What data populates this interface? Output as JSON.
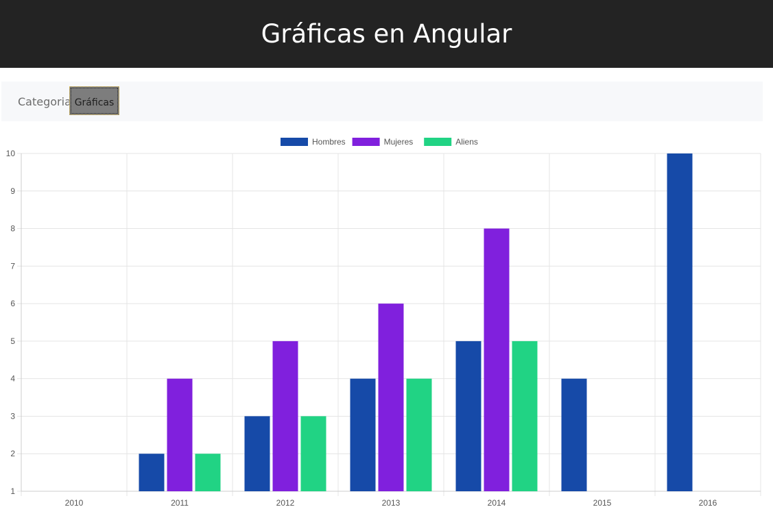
{
  "header": {
    "title": "Gráficas en Angular"
  },
  "navbar": {
    "brand": "Categoria",
    "items": [
      {
        "label": "Gráficas",
        "active": true
      }
    ]
  },
  "colors": {
    "header_bg": "#232323",
    "navbar_bg": "#f7f8fa",
    "active_item_bg": "#7d7d7d"
  },
  "chart_data": {
    "type": "bar",
    "categories": [
      "2010",
      "2011",
      "2012",
      "2013",
      "2014",
      "2015",
      "2016"
    ],
    "series": [
      {
        "name": "Hombres",
        "color": "#164aa8",
        "values": [
          null,
          2,
          3,
          4,
          5,
          4,
          10
        ]
      },
      {
        "name": "Mujeres",
        "color": "#8020dd",
        "values": [
          null,
          4,
          5,
          6,
          8,
          null,
          null
        ]
      },
      {
        "name": "Aliens",
        "color": "#21d384",
        "values": [
          null,
          2,
          3,
          4,
          5,
          null,
          null
        ]
      }
    ],
    "ylim": [
      1,
      10
    ],
    "yticks": [
      "1",
      "2",
      "3",
      "4",
      "5",
      "6",
      "7",
      "8",
      "9",
      "10"
    ],
    "legend_position": "top",
    "grid": true
  }
}
